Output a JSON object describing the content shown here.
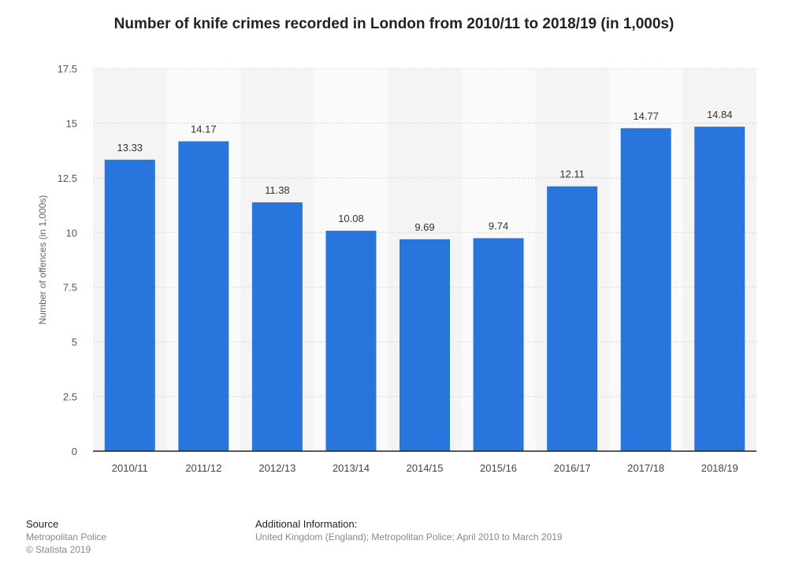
{
  "chart_data": {
    "type": "bar",
    "title": "Number of knife crimes recorded in London from 2010/11 to 2018/19 (in 1,000s)",
    "xlabel": "",
    "ylabel": "Number of offences (in 1,000s)",
    "categories": [
      "2010/11",
      "2011/12",
      "2012/13",
      "2013/14",
      "2014/15",
      "2015/16",
      "2016/17",
      "2017/18",
      "2018/19"
    ],
    "values": [
      13.33,
      14.17,
      11.38,
      10.08,
      9.69,
      9.74,
      12.11,
      14.77,
      14.84
    ],
    "value_labels": [
      "13.33",
      "14.17",
      "11.38",
      "10.08",
      "9.69",
      "9.74",
      "12.11",
      "14.77",
      "14.84"
    ],
    "ylim": [
      0,
      17.5
    ],
    "yticks": [
      0,
      2.5,
      5,
      7.5,
      10,
      12.5,
      15,
      17.5
    ],
    "ytick_labels": [
      "0",
      "2.5",
      "5",
      "7.5",
      "10",
      "12.5",
      "15",
      "17.5"
    ],
    "grid": true,
    "bar_color": "#2876dd"
  },
  "footer": {
    "source_heading": "Source",
    "source_lines": [
      "Metropolitan Police",
      "© Statista 2019"
    ],
    "info_heading": "Additional Information:",
    "info_text": "United Kingdom (England); Metropolitan Police; April 2010 to March 2019"
  }
}
